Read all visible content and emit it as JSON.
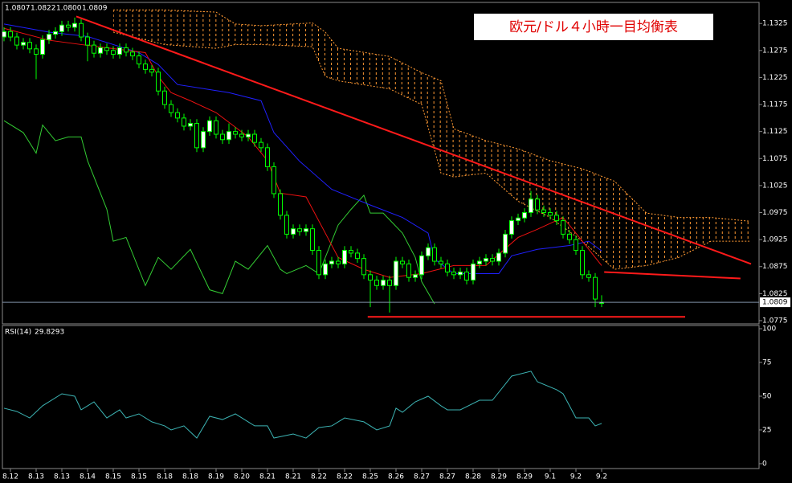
{
  "title": "欧元/ドル４小時一目均衡表",
  "chart_data": [
    {
      "type": "candlestick",
      "ohlc_label": [
        "1.0807",
        "1.0822",
        "1.0800",
        "1.0809"
      ],
      "xlim": [
        -0.25,
        117.5
      ],
      "ylim": [
        1.0769,
        1.1364
      ],
      "yticks": [
        1.1325,
        1.1275,
        1.1225,
        1.1175,
        1.1125,
        1.1075,
        1.1025,
        1.0975,
        1.0925,
        1.0875,
        1.0825,
        1.0775
      ],
      "xticks": [
        {
          "value": 1,
          "label": "8.12"
        },
        {
          "value": 5,
          "label": "8.13"
        },
        {
          "value": 9,
          "label": "8.13"
        },
        {
          "value": 13,
          "label": "8.14"
        },
        {
          "value": 17,
          "label": "8.15"
        },
        {
          "value": 21,
          "label": "8.15"
        },
        {
          "value": 25,
          "label": "8.18"
        },
        {
          "value": 29,
          "label": "8.18"
        },
        {
          "value": 33,
          "label": "8.19"
        },
        {
          "value": 37,
          "label": "8.20"
        },
        {
          "value": 41,
          "label": "8.21"
        },
        {
          "value": 45,
          "label": "8.21"
        },
        {
          "value": 49,
          "label": "8.22"
        },
        {
          "value": 53,
          "label": "8.22"
        },
        {
          "value": 57,
          "label": "8.25"
        },
        {
          "value": 61,
          "label": "8.26"
        },
        {
          "value": 65,
          "label": "8.27"
        },
        {
          "value": 69,
          "label": "8.27"
        },
        {
          "value": 73,
          "label": "8.28"
        },
        {
          "value": 77,
          "label": "8.29"
        },
        {
          "value": 81,
          "label": "8.29"
        },
        {
          "value": 85,
          "label": "9.1"
        },
        {
          "value": 89,
          "label": "9.2"
        },
        {
          "value": 93,
          "label": "9.2"
        }
      ],
      "bull_color": "#ffffff",
      "bear_color": "#000000",
      "wick_color": "#00ff00",
      "price_line_color": "#7f8fa6",
      "open": [
        1.13,
        1.131,
        1.13,
        1.1285,
        1.129,
        1.1278,
        1.1268,
        1.1295,
        1.1305,
        1.131,
        1.1322,
        1.1318,
        1.1325,
        1.13,
        1.1285,
        1.127,
        1.128,
        1.1275,
        1.1268,
        1.128,
        1.1272,
        1.1265,
        1.125,
        1.124,
        1.1235,
        1.12,
        1.1175,
        1.116,
        1.115,
        1.1135,
        1.114,
        1.1095,
        1.1125,
        1.1145,
        1.112,
        1.111,
        1.1125,
        1.112,
        1.1115,
        1.112,
        1.1105,
        1.1095,
        1.106,
        1.101,
        1.097,
        1.0935,
        1.0945,
        1.094,
        1.0945,
        1.0905,
        1.086,
        1.088,
        1.0885,
        1.088,
        1.0905,
        1.09,
        1.089,
        1.086,
        1.085,
        1.084,
        1.085,
        1.084,
        1.0885,
        1.088,
        1.0855,
        1.086,
        1.0895,
        1.091,
        1.0885,
        1.088,
        1.0865,
        1.086,
        1.0865,
        1.085,
        1.088,
        1.0885,
        1.089,
        1.0885,
        1.09,
        1.0935,
        1.096,
        1.0965,
        1.0975,
        1.1,
        1.098,
        1.0975,
        1.097,
        1.096,
        1.0935,
        1.0925,
        1.0905,
        1.086,
        1.0855,
        1.0807
      ],
      "high": [
        1.1318,
        1.1318,
        1.1308,
        1.1298,
        1.1298,
        1.1286,
        1.1303,
        1.1313,
        1.1318,
        1.133,
        1.133,
        1.1336,
        1.1333,
        1.1308,
        1.1293,
        1.1288,
        1.1288,
        1.1283,
        1.1288,
        1.1288,
        1.128,
        1.1273,
        1.1258,
        1.1248,
        1.1243,
        1.1208,
        1.1183,
        1.1168,
        1.1158,
        1.1148,
        1.1148,
        1.1133,
        1.1153,
        1.1153,
        1.1128,
        1.114,
        1.1133,
        1.1128,
        1.1128,
        1.1128,
        1.1113,
        1.1103,
        1.1068,
        1.1018,
        1.0978,
        1.0953,
        1.0953,
        1.0953,
        1.0953,
        1.0913,
        1.0888,
        1.0893,
        1.0893,
        1.0913,
        1.0913,
        1.0908,
        1.0898,
        1.0868,
        1.0858,
        1.0858,
        1.0858,
        1.0893,
        1.0893,
        1.0888,
        1.0868,
        1.0903,
        1.0918,
        1.0918,
        1.0893,
        1.0888,
        1.0873,
        1.0873,
        1.0873,
        1.0888,
        1.0893,
        1.0898,
        1.0898,
        1.0908,
        1.0943,
        1.0968,
        1.0973,
        1.0983,
        1.1015,
        1.1008,
        1.0988,
        1.0983,
        1.0978,
        1.0968,
        1.0943,
        1.0933,
        1.0913,
        1.0868,
        1.0863,
        1.0822
      ],
      "low": [
        1.1292,
        1.1292,
        1.1277,
        1.1277,
        1.127,
        1.1222,
        1.126,
        1.1287,
        1.1297,
        1.1302,
        1.131,
        1.131,
        1.1292,
        1.1255,
        1.1262,
        1.1262,
        1.1267,
        1.126,
        1.126,
        1.1264,
        1.1257,
        1.1242,
        1.1232,
        1.1227,
        1.1192,
        1.1167,
        1.1152,
        1.1142,
        1.1127,
        1.1127,
        1.1087,
        1.1087,
        1.1117,
        1.1112,
        1.1102,
        1.1102,
        1.1112,
        1.1107,
        1.1107,
        1.1097,
        1.1087,
        1.1052,
        1.1002,
        1.0962,
        1.0927,
        1.0927,
        1.0932,
        1.0932,
        1.0897,
        1.0852,
        1.0852,
        1.0872,
        1.0872,
        1.0872,
        1.0892,
        1.0882,
        1.0852,
        1.08,
        1.0832,
        1.0832,
        1.079,
        1.0832,
        1.0872,
        1.0847,
        1.0847,
        1.0852,
        1.0887,
        1.0877,
        1.0872,
        1.0857,
        1.0852,
        1.0852,
        1.0842,
        1.0842,
        1.0872,
        1.0877,
        1.0877,
        1.0877,
        1.0892,
        1.0927,
        1.0952,
        1.0957,
        1.0967,
        1.0972,
        1.0967,
        1.0962,
        1.0952,
        1.0927,
        1.0917,
        1.0897,
        1.0852,
        1.0847,
        1.08,
        1.08
      ],
      "close": [
        1.131,
        1.13,
        1.1285,
        1.129,
        1.1278,
        1.1268,
        1.1295,
        1.1305,
        1.131,
        1.1322,
        1.1318,
        1.1325,
        1.13,
        1.1285,
        1.127,
        1.128,
        1.1275,
        1.1268,
        1.128,
        1.1272,
        1.1265,
        1.125,
        1.124,
        1.1235,
        1.12,
        1.1175,
        1.116,
        1.115,
        1.1135,
        1.114,
        1.1095,
        1.1125,
        1.1145,
        1.112,
        1.111,
        1.1125,
        1.112,
        1.1115,
        1.112,
        1.1105,
        1.1095,
        1.106,
        1.101,
        1.097,
        1.0935,
        1.0945,
        1.094,
        1.0945,
        1.0905,
        1.086,
        1.088,
        1.0885,
        1.088,
        1.0905,
        1.09,
        1.089,
        1.086,
        1.085,
        1.084,
        1.085,
        1.084,
        1.0885,
        1.088,
        1.0855,
        1.086,
        1.0895,
        1.091,
        1.0885,
        1.088,
        1.0865,
        1.086,
        1.0865,
        1.085,
        1.088,
        1.0885,
        1.089,
        1.0885,
        1.09,
        1.0935,
        1.096,
        1.0965,
        1.0975,
        1.1,
        1.098,
        1.0975,
        1.097,
        1.096,
        1.0935,
        1.0925,
        1.0905,
        1.086,
        1.0855,
        1.0815,
        1.0809
      ],
      "cloud": {
        "color": "#ff9933",
        "x": [
          17,
          25,
          33,
          36,
          40,
          48,
          50,
          52,
          60,
          65,
          68,
          70,
          75,
          80,
          85,
          90,
          95,
          100,
          105,
          110,
          116
        ],
        "upper": [
          1.135,
          1.135,
          1.1346,
          1.1324,
          1.1321,
          1.1326,
          1.1309,
          1.1279,
          1.1264,
          1.1234,
          1.1219,
          1.113,
          1.1108,
          1.1093,
          1.1071,
          1.1056,
          1.1033,
          1.0974,
          1.0966,
          1.0966,
          1.0959
        ],
        "lower": [
          1.1309,
          1.1286,
          1.1279,
          1.1286,
          1.1286,
          1.1282,
          1.1227,
          1.1219,
          1.1204,
          1.1175,
          1.1048,
          1.1041,
          1.1048,
          1.0996,
          1.0966,
          1.0922,
          1.087,
          1.0877,
          1.0892,
          1.0922,
          1.0922
        ]
      },
      "lines": [
        {
          "color": "#33cc33",
          "x": [
            0,
            3,
            5,
            6,
            8,
            10,
            12,
            13,
            16,
            17,
            19,
            22,
            24,
            26,
            29,
            32,
            34,
            36,
            38,
            41,
            43,
            44,
            47,
            49,
            52,
            54,
            56,
            57,
            59,
            62,
            64,
            65,
            67
          ],
          "values": [
            1.1145,
            1.1123,
            1.1085,
            1.1137,
            1.1108,
            1.1115,
            1.1115,
            1.1071,
            1.0981,
            1.0922,
            1.0929,
            1.084,
            1.0892,
            1.087,
            1.0907,
            1.0832,
            1.0825,
            1.0885,
            1.087,
            1.0914,
            1.087,
            1.0862,
            1.0877,
            1.0862,
            1.0952,
            1.0981,
            1.1007,
            1.0974,
            1.0974,
            1.0937,
            1.0892,
            1.0847,
            1.0806
          ]
        },
        {
          "color": "#2020ff",
          "x": [
            0,
            7,
            13,
            21,
            24,
            27,
            35,
            40,
            42,
            46,
            51,
            57,
            62,
            66,
            67,
            70,
            77,
            79,
            83,
            88,
            91,
            93
          ],
          "values": [
            1.1324,
            1.1309,
            1.1301,
            1.1271,
            1.1249,
            1.1212,
            1.1197,
            1.1182,
            1.1123,
            1.107,
            1.1018,
            1.0989,
            1.0966,
            1.0937,
            1.0889,
            1.0862,
            1.0862,
            1.0895,
            1.0907,
            1.0914,
            1.0922,
            1.0904
          ]
        },
        {
          "color": "#ee1111",
          "x": [
            0,
            7,
            12,
            22,
            24,
            26,
            29,
            33,
            38,
            41,
            43,
            47,
            50,
            52,
            56,
            60,
            65,
            70,
            75,
            80,
            83,
            87,
            89,
            93
          ],
          "values": [
            1.1316,
            1.1294,
            1.1286,
            1.1271,
            1.1227,
            1.1197,
            1.1182,
            1.116,
            1.1115,
            1.1071,
            1.1011,
            1.1004,
            1.0937,
            1.0892,
            1.087,
            1.0855,
            1.0862,
            1.0877,
            1.0877,
            1.0929,
            1.0944,
            1.0966,
            1.0937,
            1.0877
          ]
        }
      ],
      "trendlines": [
        {
          "color": "#ff1a1a",
          "x": [
            11.25,
            116.25
          ],
          "values": [
            1.1338,
            1.088
          ]
        },
        {
          "color": "#ff1a1a",
          "x": [
            93.4,
            114.6
          ],
          "values": [
            1.0865,
            1.0853
          ]
        },
        {
          "color": "#ff1a1a",
          "x": [
            56.6,
            106
          ],
          "values": [
            1.0782,
            1.0782
          ]
        }
      ]
    },
    {
      "type": "line",
      "title": "RSI(14)",
      "xlim": [
        -0.25,
        117.5
      ],
      "ylim": [
        -3.6,
        102.4
      ],
      "yticks": [
        0,
        25,
        50,
        75,
        100
      ],
      "series": [
        {
          "color": "#3cb3b3",
          "x": [
            0,
            2,
            4,
            6,
            9,
            11,
            12,
            14,
            16,
            18,
            19,
            21,
            23,
            25,
            26,
            28,
            30,
            32,
            34,
            36,
            38,
            39,
            41,
            42,
            45,
            47,
            49,
            51,
            53,
            56,
            58,
            60,
            61,
            62,
            64,
            66,
            68,
            69,
            71,
            74,
            76,
            78,
            79,
            82,
            83,
            86,
            87,
            88,
            89,
            91,
            92,
            93
          ],
          "values": [
            41.1,
            38.7,
            33.9,
            42.9,
            51.8,
            50.0,
            39.9,
            45.8,
            33.9,
            39.9,
            33.9,
            36.9,
            31.0,
            28.0,
            25.0,
            28.0,
            19.0,
            35.1,
            32.7,
            36.9,
            31.0,
            28.0,
            28.0,
            19.0,
            22.0,
            19.0,
            26.8,
            28.0,
            33.9,
            31.0,
            25.0,
            28.0,
            41.1,
            38.1,
            45.8,
            50.0,
            42.9,
            39.9,
            39.9,
            47.0,
            47.0,
            58.9,
            64.9,
            68.5,
            60.7,
            54.8,
            51.8,
            42.9,
            33.9,
            33.9,
            28.0,
            29.8293
          ]
        }
      ]
    }
  ]
}
